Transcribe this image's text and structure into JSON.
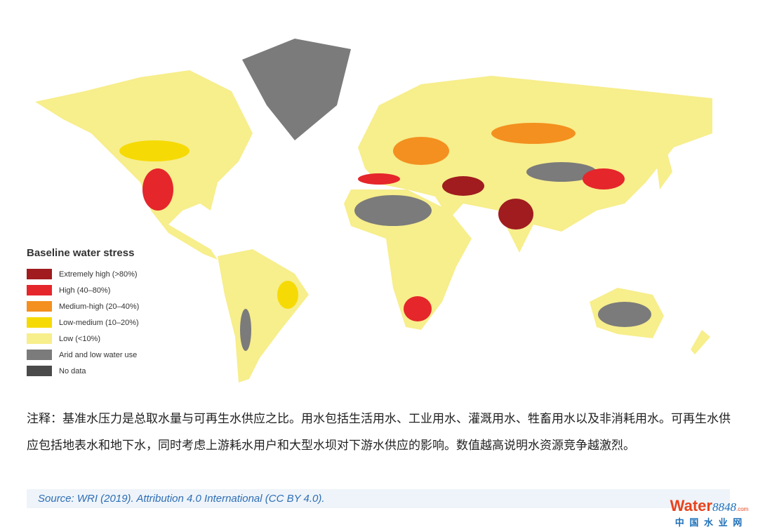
{
  "legend": {
    "title": "Baseline water stress",
    "items": [
      {
        "label": "Extremely high (>80%)",
        "color": "#a01c1f"
      },
      {
        "label": "High (40–80%)",
        "color": "#e5262b"
      },
      {
        "label": "Medium-high (20–40%)",
        "color": "#f3901f"
      },
      {
        "label": "Low-medium (10–20%)",
        "color": "#f6da05"
      },
      {
        "label": "Low (<10%)",
        "color": "#f7ee8c"
      },
      {
        "label": "Arid and low water use",
        "color": "#7b7b7b"
      },
      {
        "label": "No data",
        "color": "#4a4a4a"
      }
    ]
  },
  "note": "注释：基准水压力是总取水量与可再生水供应之比。用水包括生活用水、工业用水、灌溉用水、牲畜用水以及非消耗用水。可再生水供应包括地表水和地下水，同时考虑上游耗水用户和大型水坝对下游水供应的影响。数值越高说明水资源竞争越激烈。",
  "source": "Source: WRI (2019). Attribution 4.0 International (CC BY 4.0).",
  "watermark": {
    "brand": "Water",
    "number": "8848",
    "suffix": ".com",
    "site": "中 国 水 业 网"
  }
}
